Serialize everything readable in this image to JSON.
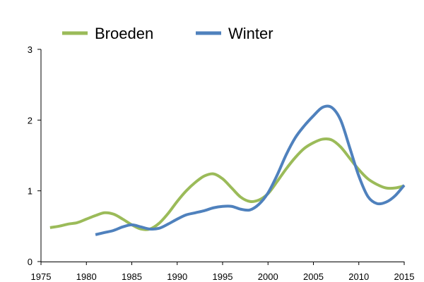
{
  "chart_data": {
    "type": "line",
    "title": "",
    "xlabel": "",
    "ylabel": "",
    "xlim": [
      1975,
      2015
    ],
    "ylim": [
      0,
      3
    ],
    "x_ticks": [
      "1975",
      "1980",
      "1985",
      "1990",
      "1995",
      "2000",
      "2005",
      "2010",
      "2015"
    ],
    "y_ticks": [
      "0",
      "1",
      "2",
      "3"
    ],
    "grid": false,
    "legend_position": "top",
    "series": [
      {
        "name": "Broeden",
        "color": "#9bbb59",
        "x": [
          1976,
          1977,
          1978,
          1979,
          1980,
          1981,
          1982,
          1983,
          1984,
          1985,
          1986,
          1987,
          1988,
          1989,
          1990,
          1991,
          1992,
          1993,
          1994,
          1995,
          1996,
          1997,
          1998,
          1999,
          2000,
          2001,
          2002,
          2003,
          2004,
          2005,
          2006,
          2007,
          2008,
          2009,
          2010,
          2011,
          2012,
          2013,
          2014,
          2015
        ],
        "values": [
          0.48,
          0.5,
          0.53,
          0.55,
          0.6,
          0.65,
          0.69,
          0.67,
          0.6,
          0.52,
          0.46,
          0.46,
          0.54,
          0.68,
          0.85,
          1.0,
          1.12,
          1.21,
          1.24,
          1.17,
          1.04,
          0.91,
          0.85,
          0.87,
          0.96,
          1.13,
          1.31,
          1.47,
          1.6,
          1.68,
          1.73,
          1.72,
          1.62,
          1.46,
          1.3,
          1.17,
          1.09,
          1.04,
          1.04,
          1.07
        ]
      },
      {
        "name": "Winter",
        "color": "#4f81bd",
        "x": [
          1981,
          1982,
          1983,
          1984,
          1985,
          1986,
          1987,
          1988,
          1989,
          1990,
          1991,
          1992,
          1993,
          1994,
          1995,
          1996,
          1997,
          1998,
          1999,
          2000,
          2001,
          2002,
          2003,
          2004,
          2005,
          2006,
          2007,
          2008,
          2009,
          2010,
          2011,
          2012,
          2013,
          2014,
          2015
        ],
        "values": [
          0.38,
          0.41,
          0.44,
          0.49,
          0.52,
          0.49,
          0.46,
          0.47,
          0.53,
          0.6,
          0.66,
          0.69,
          0.72,
          0.76,
          0.78,
          0.78,
          0.74,
          0.73,
          0.81,
          0.97,
          1.22,
          1.51,
          1.75,
          1.92,
          2.06,
          2.18,
          2.18,
          2.0,
          1.61,
          1.21,
          0.92,
          0.82,
          0.84,
          0.93,
          1.08
        ]
      }
    ]
  }
}
